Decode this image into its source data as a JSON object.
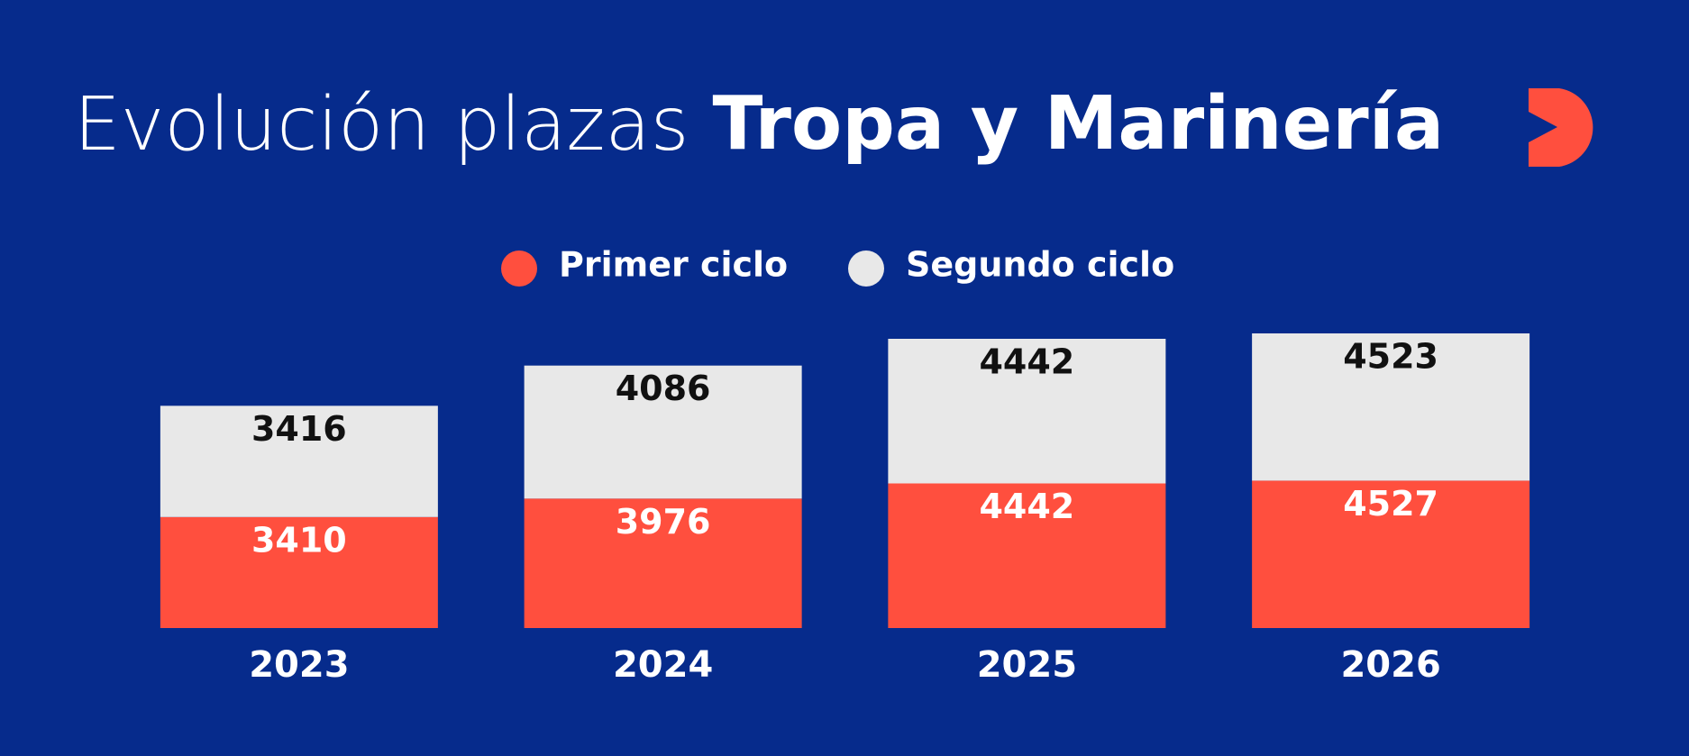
{
  "chart_data": {
    "type": "stacked-bar",
    "title": "Evolución plazas",
    "title_emphasis": "Tropa y Marinería",
    "categories": [
      "2023",
      "2024",
      "2025",
      "2026"
    ],
    "series": [
      {
        "name": "Primer ciclo",
        "color": "#ff4f3e",
        "label_color": "#ffffff",
        "values": [
          3410,
          3976,
          4442,
          4527
        ]
      },
      {
        "name": "Segundo ciclo",
        "color": "#e8e8e8",
        "label_color": "#111111",
        "values": [
          3416,
          4086,
          4442,
          4523
        ]
      }
    ]
  }
}
